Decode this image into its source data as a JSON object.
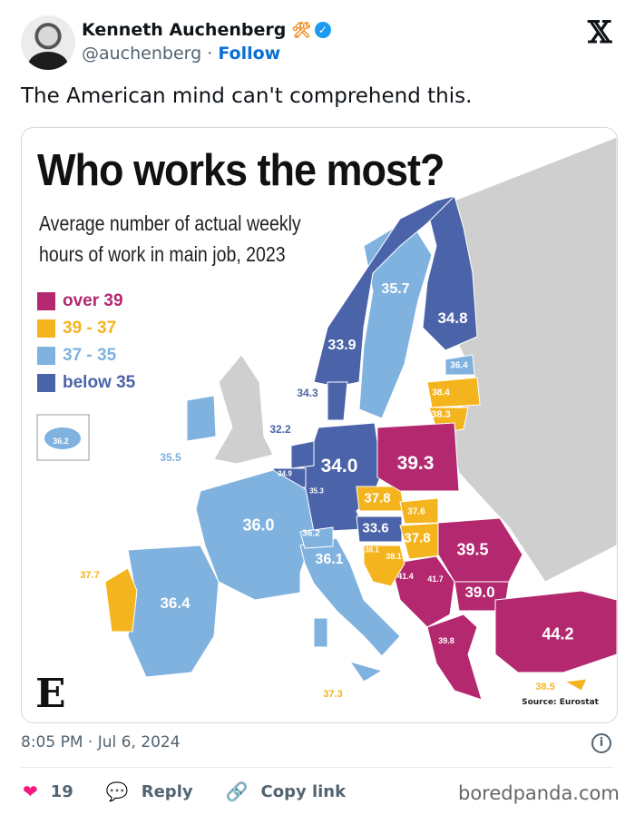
{
  "tweet": {
    "author_name": "Kenneth Auchenberg",
    "author_emoji": "🛠",
    "handle": "@auchenberg",
    "separator": "·",
    "follow_label": "Follow",
    "text": "The American mind can't comprehend this.",
    "timestamp": "8:05 PM · Jul 6, 2024",
    "likes": "19",
    "reply_label": "Reply",
    "copy_link_label": "Copy link"
  },
  "watermark": "boredpanda.com",
  "infographic": {
    "title": "Who works the most?",
    "subtitle": "Average number of actual weekly hours of work in main job, 2023",
    "legend": [
      {
        "label": "over 39",
        "color": "#b3286f"
      },
      {
        "label": "39 - 37",
        "color": "#f4b41e"
      },
      {
        "label": "37 - 35",
        "color": "#80b2df"
      },
      {
        "label": "below 35",
        "color": "#4b63a9"
      }
    ],
    "source": "Source: Eurostat",
    "values": [
      "35.7",
      "34.8",
      "33.9",
      "36.4",
      "38.4",
      "38.3",
      "34.3",
      "32.2",
      "35.5",
      "36.2",
      "34.9",
      "35.3",
      "34.0",
      "39.3",
      "37.8",
      "37.6",
      "33.6",
      "37.8",
      "36.0",
      "36.2",
      "36.1",
      "38.1",
      "38.1",
      "41.4",
      "41.7",
      "39.5",
      "39.0",
      "44.2",
      "39.8",
      "37.7",
      "36.4",
      "37.3",
      "38.5"
    ]
  },
  "colors": {
    "no_data": "#cfcfcf",
    "accent": "#1d9bf0",
    "like": "#f91880"
  }
}
